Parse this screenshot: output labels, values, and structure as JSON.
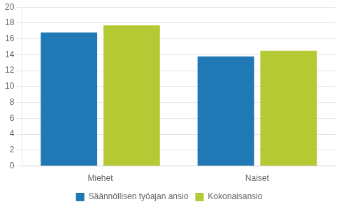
{
  "chart_data": {
    "type": "bar",
    "categories": [
      "Miehet",
      "Naiset"
    ],
    "series": [
      {
        "name": "Säännöllisen työajan ansio",
        "color": "#2079b4",
        "values": [
          16.8,
          13.8
        ]
      },
      {
        "name": "Kokonaisansio",
        "color": "#b5c934",
        "values": [
          17.7,
          14.5
        ]
      }
    ],
    "ylim": [
      0,
      20
    ],
    "yticks": [
      0,
      2,
      4,
      6,
      8,
      10,
      12,
      14,
      16,
      18,
      20
    ],
    "grid": true,
    "legend": "bottom"
  }
}
